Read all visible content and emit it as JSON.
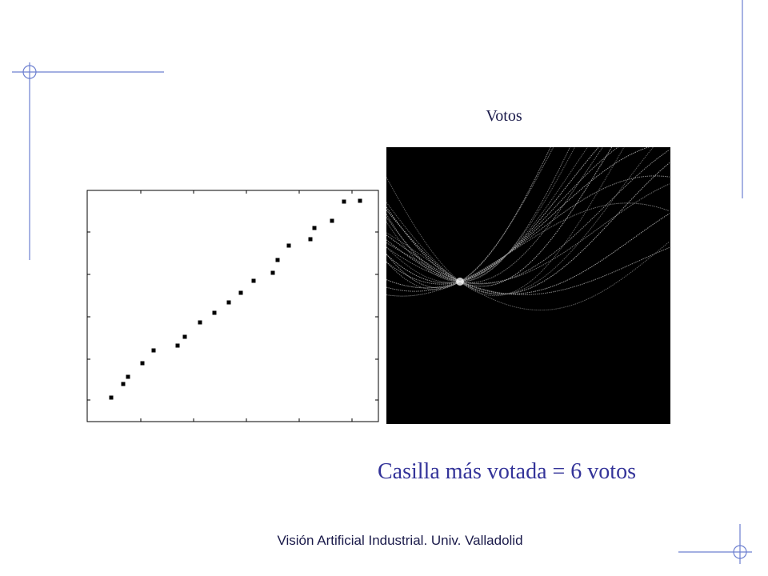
{
  "slide": {
    "plot_title": "Votos",
    "result": "Casilla más votada = 6 votos",
    "footer": "Visión Artificial Industrial. Univ. Valladolid"
  }
}
